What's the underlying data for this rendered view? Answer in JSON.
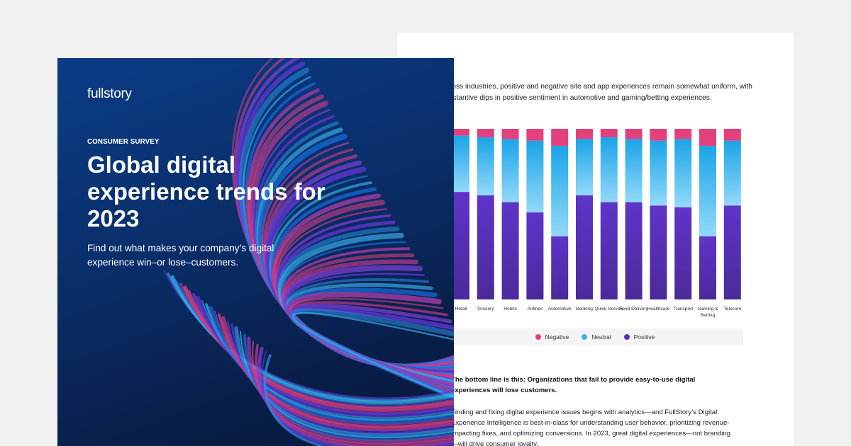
{
  "cover": {
    "brand": "fullstory",
    "eyebrow": "CONSUMER SURVEY",
    "title": "Global digital experience trends for 2023",
    "subtitle": "Find out what makes your company’s digital experience win–or lose–customers."
  },
  "report": {
    "intro": "Across industries, positive and negative site and app experiences remain somewhat uniform, with substantive dips in positive sentiment in automotive and gaming/betting experiences.",
    "bottom_line": "The bottom line is this: Organizations that fail to provide easy-to-use digital experiences will lose customers.",
    "body": "Finding and fixing digital experience issues begins with analytics—and FullStory’s Digital Experience Intelligence is best-in-class for understanding user behavior, prioritizing revenue-impacting fixes, and optimizing conversions. In 2023, great digital experiences—not branding—will drive consumer loyalty."
  },
  "colors": {
    "negative": "#e2427f",
    "neutral": "#3ab3ec",
    "positive": "#5a2fbe",
    "cover_bg": "#0a2f6b"
  },
  "chart_data": {
    "type": "bar",
    "stacked": true,
    "percent_stacked": true,
    "categories": [
      "Retail",
      "Grocery",
      "Hotels",
      "Airlines",
      "Automotive",
      "Banking",
      "Quick Service",
      "Food Delivery",
      "Healthcare",
      "Transport",
      "Gaming & Betting",
      "Telecom"
    ],
    "series": [
      {
        "name": "Positive",
        "values": [
          63,
          61,
          57,
          51,
          37,
          61,
          57,
          57,
          55,
          54,
          37,
          55
        ]
      },
      {
        "name": "Neutral",
        "values": [
          33,
          34,
          37,
          42,
          53,
          33,
          38,
          37,
          38,
          40,
          53,
          38
        ]
      },
      {
        "name": "Negative",
        "values": [
          4,
          5,
          6,
          7,
          10,
          6,
          5,
          6,
          7,
          6,
          10,
          7
        ]
      }
    ],
    "legend": [
      "Negative",
      "Neutral",
      "Positive"
    ],
    "legend_position": "bottom",
    "grid": false
  }
}
